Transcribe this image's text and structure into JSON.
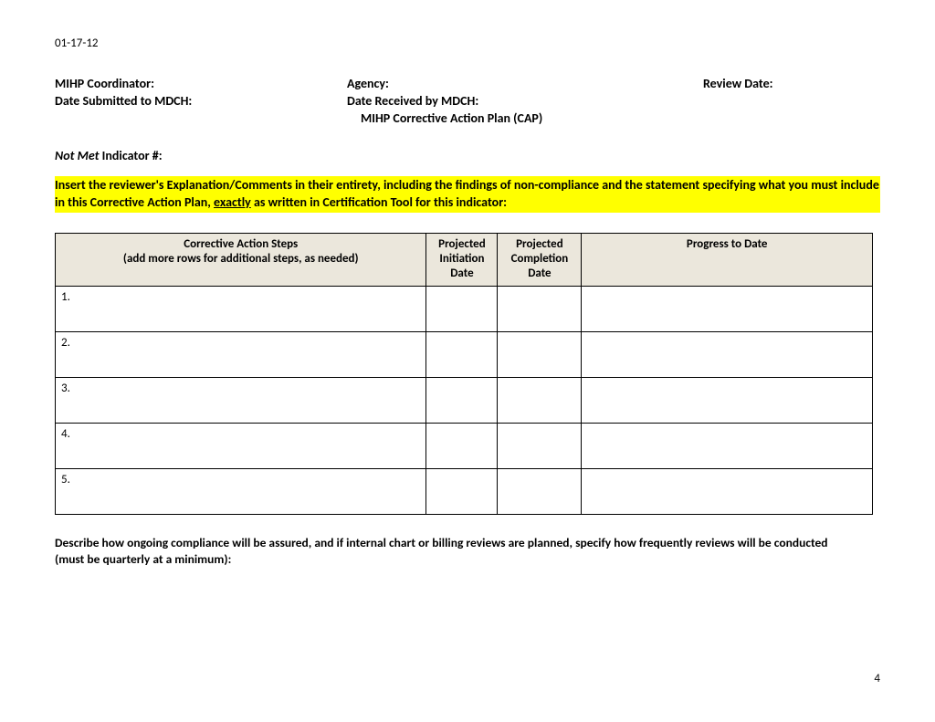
{
  "header": {
    "date": "01-17-12"
  },
  "fields": {
    "coordinator_label": "MIHP Coordinator:",
    "agency_label": "Agency:",
    "review_date_label": "Review Date:",
    "submitted_label": "Date Submitted to MDCH:",
    "received_label": "Date Received by MDCH:"
  },
  "title": "MIHP Corrective Action Plan (CAP)",
  "indicator": {
    "italic_part": "Not Met",
    "rest": " Indicator #:"
  },
  "highlight": {
    "line1_before": "Insert the reviewer's Explanation/Comments in their entirety, including the findings of non-compliance and the statement specifying what you must ",
    "line2_before": "include in this Corrective Action Plan, ",
    "underlined": "exactly",
    "line2_after": " as written in Certification Tool for this indicator:",
    "highlight_color": "#ffff00",
    "text_color": "#000000"
  },
  "table": {
    "header_bg": "#ebe7dc",
    "border_color": "#000000",
    "columns": [
      {
        "line1": "Corrective Action Steps",
        "line2": "(add more rows for additional steps, as needed)"
      },
      {
        "line1": "Projected",
        "line2": "Initiation",
        "line3": "Date"
      },
      {
        "line1": "Projected",
        "line2": "Completion",
        "line3": "Date"
      },
      {
        "line1": "Progress to Date"
      }
    ],
    "rows": [
      {
        "num": "1."
      },
      {
        "num": "2."
      },
      {
        "num": "3."
      },
      {
        "num": "4."
      },
      {
        "num": "5."
      }
    ]
  },
  "compliance": "Describe how ongoing compliance will be assured, and if internal chart or billing reviews are planned, specify how frequently reviews will be conducted (must be quarterly at a minimum):",
  "page_number": "4"
}
